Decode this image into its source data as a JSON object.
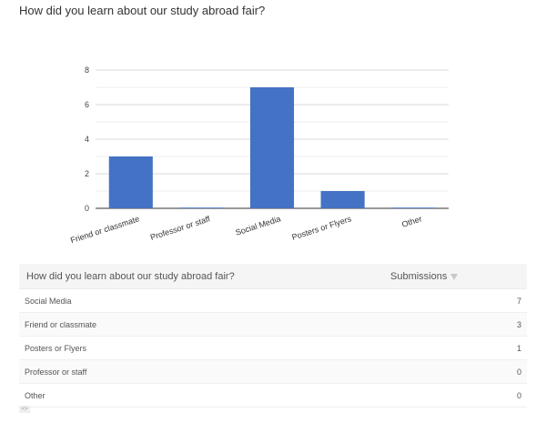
{
  "question": "How did you learn about our study abroad fair?",
  "chart_data": {
    "type": "bar",
    "title": "",
    "categories": [
      "Friend or classmate",
      "Professor or staff",
      "Social Media",
      "Posters or Flyers",
      "Other"
    ],
    "values": [
      3,
      0,
      7,
      1,
      0
    ],
    "xlabel": "",
    "ylabel": "",
    "ylim": [
      0,
      8
    ],
    "yticks": [
      0,
      2,
      4,
      6,
      8
    ],
    "grid": true,
    "legend": "none",
    "bar_color": "#4472c4"
  },
  "table": {
    "header_question": "How did you learn about our study abroad fair?",
    "header_submissions": "Submissions",
    "rows": [
      {
        "label": "Social Media",
        "count": "7"
      },
      {
        "label": "Friend or classmate",
        "count": "3"
      },
      {
        "label": "Posters or Flyers",
        "count": "1"
      },
      {
        "label": "Professor or staff",
        "count": "0"
      },
      {
        "label": "Other",
        "count": "0"
      }
    ]
  },
  "icons": {
    "sort": "sort-desc-icon",
    "resize": "resize-handle-icon"
  }
}
